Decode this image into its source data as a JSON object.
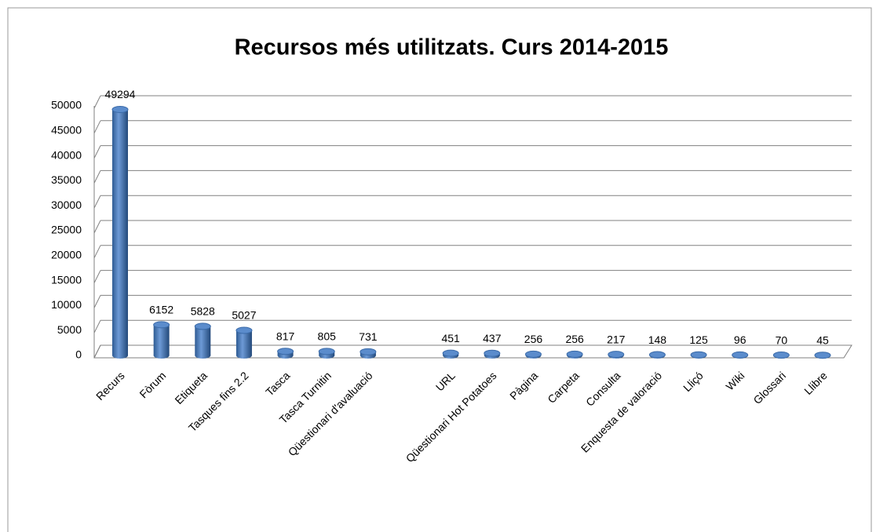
{
  "chart_data": {
    "type": "bar",
    "title": "Recursos més utilitzats. Curs 2014-2015",
    "categories": [
      "Recurs",
      "Fòrum",
      "Etiqueta",
      "Tasques fins 2.2",
      "Tasca",
      "Tasca Turnitin",
      "Qüestionari d'avaluació",
      null,
      "URL",
      "Qüestionari Hot Potatoes",
      "Pàgina",
      "Carpeta",
      "Consulta",
      "Enquesta de valoració",
      "Lliçó",
      "Wiki",
      "Glossari",
      "Llibre"
    ],
    "values": [
      49294,
      6152,
      5828,
      5027,
      817,
      805,
      731,
      null,
      451,
      437,
      256,
      256,
      217,
      148,
      125,
      96,
      70,
      45
    ],
    "color": "#4f81bd",
    "ylim": [
      0,
      50000
    ],
    "yticks": [
      0,
      5000,
      10000,
      15000,
      20000,
      25000,
      30000,
      35000,
      40000,
      45000,
      50000
    ],
    "grid": true
  }
}
